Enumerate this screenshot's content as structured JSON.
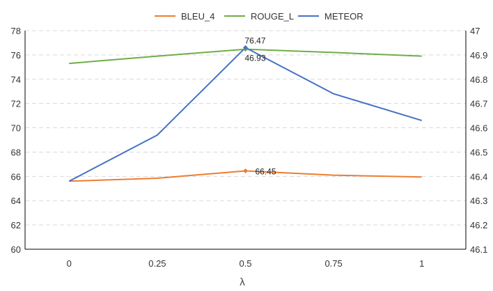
{
  "chart_data": {
    "type": "line",
    "x": [
      "0",
      "0.25",
      "0.5",
      "0.75",
      "1"
    ],
    "xlabel": "λ",
    "ylim_left": [
      60,
      78
    ],
    "yticks_left": [
      "60",
      "62",
      "64",
      "66",
      "68",
      "70",
      "72",
      "74",
      "76",
      "78"
    ],
    "ylim_right": [
      46.1,
      47
    ],
    "yticks_right": [
      "46.1",
      "46.2",
      "46.3",
      "46.4",
      "46.5",
      "46.6",
      "46.7",
      "46.8",
      "46.9",
      "47"
    ],
    "grid": true,
    "legend_position": "top",
    "series": [
      {
        "name": "BLEU_4",
        "axis": "left",
        "color": "#ED7D31",
        "values": [
          65.6,
          65.85,
          66.45,
          66.1,
          65.95
        ]
      },
      {
        "name": "ROUGE_L",
        "axis": "left",
        "color": "#70AD47",
        "values": [
          75.3,
          75.9,
          76.47,
          76.2,
          75.9
        ]
      },
      {
        "name": "METEOR",
        "axis": "right",
        "color": "#4472C4",
        "values": [
          46.38,
          46.57,
          46.93,
          46.74,
          46.63
        ]
      }
    ],
    "annotations": [
      {
        "series": "ROUGE_L",
        "x": "0.5",
        "text": "76.47"
      },
      {
        "series": "METEOR",
        "x": "0.5",
        "text": "46.93"
      },
      {
        "series": "BLEU_4",
        "x": "0.5",
        "text": "66.45"
      }
    ]
  }
}
